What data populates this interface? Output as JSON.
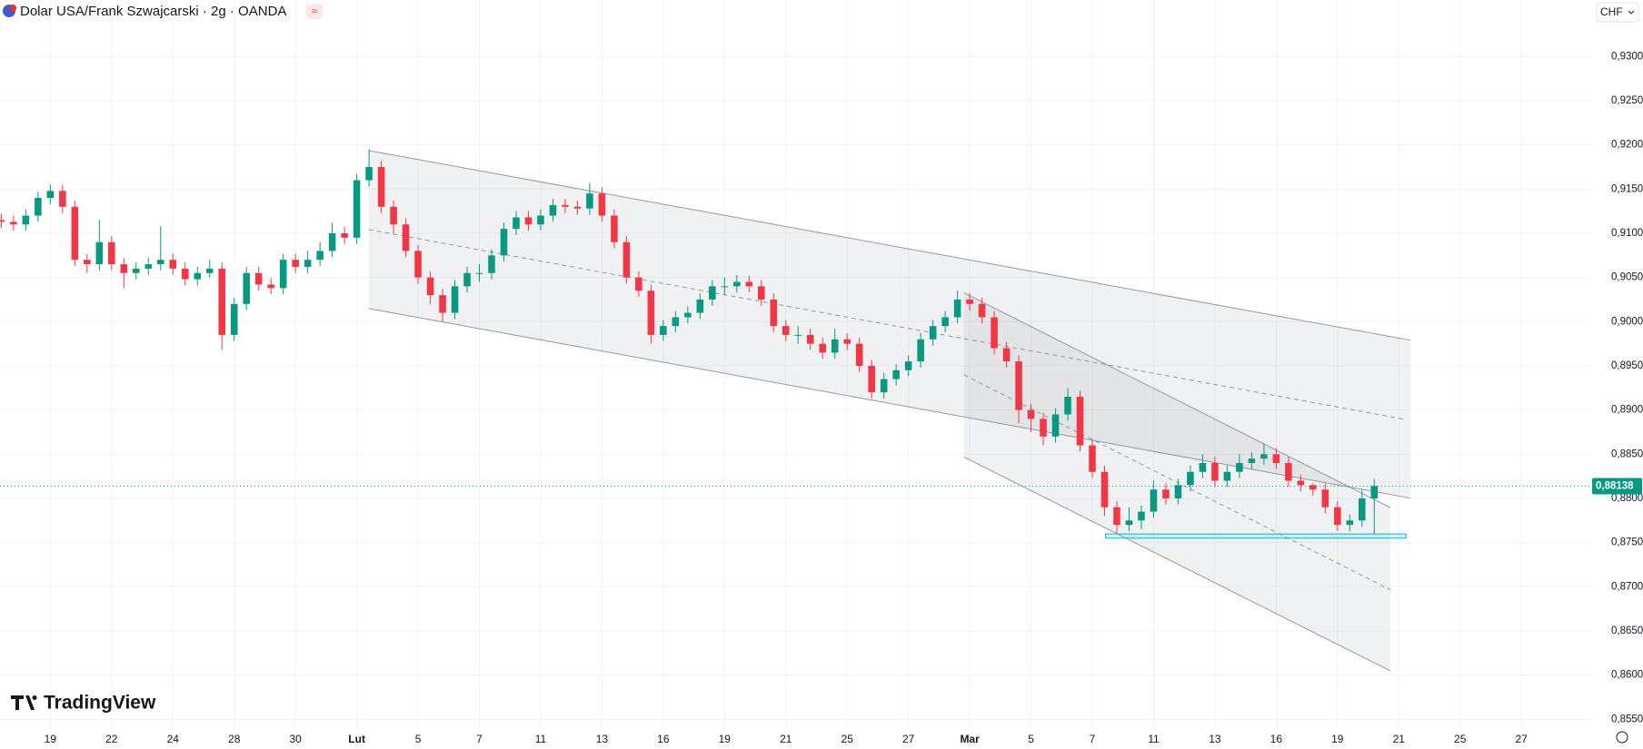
{
  "chart_data": {
    "type": "candlestick",
    "title": "Dolar USA/Frank Szwajcarski · 2g · OANDA",
    "currency": "CHF",
    "watermark": "TradingView",
    "up_color": "#089981",
    "down_color": "#f23645",
    "grid": true,
    "categories": [
      null,
      null,
      null,
      null,
      "19",
      null,
      null,
      null,
      null,
      "22",
      null,
      null,
      null,
      null,
      "24",
      null,
      null,
      null,
      null,
      "28",
      null,
      null,
      null,
      null,
      "30",
      null,
      null,
      null,
      null,
      "Lut",
      null,
      null,
      null,
      null,
      "5",
      null,
      null,
      null,
      null,
      "7",
      null,
      null,
      null,
      null,
      "11",
      null,
      null,
      null,
      null,
      "13",
      null,
      null,
      null,
      null,
      "16",
      null,
      null,
      null,
      null,
      "19",
      null,
      null,
      null,
      null,
      "21",
      null,
      null,
      null,
      null,
      "25",
      null,
      null,
      null,
      null,
      "27",
      null,
      null,
      null,
      null,
      "Mar",
      null,
      null,
      null,
      null,
      "5",
      null,
      null,
      null,
      null,
      "7",
      null,
      null,
      null,
      null,
      "11",
      null,
      null,
      null,
      null,
      "13",
      null,
      null,
      null,
      null,
      "16",
      null,
      null,
      null,
      null,
      "19",
      null,
      null,
      null,
      null,
      "21",
      null,
      null,
      null,
      null,
      "25",
      null,
      null,
      null,
      null,
      "27"
    ],
    "open": [
      0.9115,
      0.9113,
      0.911,
      0.912,
      0.914,
      0.9148,
      0.913,
      0.907,
      0.9065,
      0.909,
      0.9065,
      0.9055,
      0.906,
      0.9065,
      0.907,
      0.906,
      0.9048,
      0.9055,
      0.906,
      0.8985,
      0.902,
      0.9055,
      0.9042,
      0.9038,
      0.907,
      0.9062,
      0.907,
      0.908,
      0.91,
      0.9095,
      0.916,
      0.9175,
      0.913,
      0.911,
      0.908,
      0.905,
      0.903,
      0.901,
      0.904,
      0.9055,
      0.9055,
      0.9075,
      0.9105,
      0.9118,
      0.911,
      0.912,
      0.9132,
      0.913,
      0.9128,
      0.9145,
      0.912,
      0.909,
      0.905,
      0.9035,
      0.8985,
      0.8995,
      0.9005,
      0.901,
      0.9025,
      0.904,
      0.904,
      0.9045,
      0.904,
      0.9025,
      0.8995,
      0.8985,
      0.8985,
      0.8975,
      0.8965,
      0.898,
      0.8975,
      0.895,
      0.892,
      0.8935,
      0.8945,
      0.8955,
      0.898,
      0.8995,
      0.9005,
      0.9025,
      0.902,
      0.9005,
      0.897,
      0.8955,
      0.89,
      0.889,
      0.887,
      0.8895,
      0.8915,
      0.886,
      0.883,
      0.879,
      0.877,
      0.8775,
      0.8785,
      0.881,
      0.88,
      0.8815,
      0.883,
      0.884,
      0.882,
      0.883,
      0.884,
      0.8845,
      0.885,
      0.884,
      0.882,
      0.8815,
      0.881,
      0.879,
      0.877,
      0.8775,
      0.88,
      null,
      null,
      null,
      null,
      null,
      null,
      null,
      null,
      null,
      null,
      null,
      null
    ],
    "high": [
      0.9122,
      0.912,
      0.9127,
      0.9147,
      0.9155,
      0.9155,
      0.9137,
      0.9077,
      0.9115,
      0.9097,
      0.9072,
      0.9067,
      0.9072,
      0.9108,
      0.9077,
      0.9067,
      0.9062,
      0.907,
      0.9067,
      0.9027,
      0.9062,
      0.9062,
      0.9049,
      0.9077,
      0.9077,
      0.908,
      0.909,
      0.9112,
      0.9107,
      0.9167,
      0.9195,
      0.9182,
      0.9137,
      0.9117,
      0.9087,
      0.9057,
      0.9037,
      0.9047,
      0.9062,
      0.9065,
      0.9082,
      0.9112,
      0.9125,
      0.9125,
      0.9127,
      0.9139,
      0.9139,
      0.9137,
      0.9157,
      0.9152,
      0.9127,
      0.9097,
      0.9057,
      0.9042,
      0.9002,
      0.9012,
      0.9017,
      0.9032,
      0.9047,
      0.905,
      0.9053,
      0.9052,
      0.9047,
      0.9032,
      0.9002,
      0.8995,
      0.8992,
      0.8982,
      0.8992,
      0.8987,
      0.8982,
      0.8957,
      0.8942,
      0.8952,
      0.8962,
      0.8987,
      0.9002,
      0.9012,
      0.9035,
      0.9032,
      0.9027,
      0.9012,
      0.8977,
      0.8962,
      0.8907,
      0.8897,
      0.8902,
      0.8925,
      0.8922,
      0.8867,
      0.8837,
      0.8797,
      0.879,
      0.8792,
      0.882,
      0.8817,
      0.8822,
      0.8837,
      0.885,
      0.8847,
      0.8837,
      0.885,
      0.8852,
      0.8862,
      0.8857,
      0.8847,
      0.8827,
      0.8817,
      0.8817,
      0.8797,
      0.8782,
      0.881,
      0.8822,
      null,
      null,
      null,
      null,
      null,
      null,
      null,
      null,
      null,
      null,
      null,
      null
    ],
    "low": [
      0.9106,
      0.9103,
      0.9103,
      0.9113,
      0.9133,
      0.9123,
      0.9063,
      0.9055,
      0.9058,
      0.9058,
      0.9038,
      0.9048,
      0.9053,
      0.9058,
      0.9053,
      0.9041,
      0.9041,
      0.905,
      0.8968,
      0.8978,
      0.9013,
      0.9035,
      0.9031,
      0.9031,
      0.9055,
      0.9055,
      0.9063,
      0.9073,
      0.9088,
      0.9088,
      0.9153,
      0.9123,
      0.91,
      0.9073,
      0.9043,
      0.902,
      0.9,
      0.9003,
      0.9033,
      0.9045,
      0.9048,
      0.9068,
      0.9098,
      0.9103,
      0.9103,
      0.9113,
      0.9123,
      0.9121,
      0.9121,
      0.9113,
      0.9083,
      0.9043,
      0.9028,
      0.8975,
      0.8978,
      0.8988,
      0.8998,
      0.9003,
      0.9018,
      0.903,
      0.9033,
      0.9033,
      0.9018,
      0.8988,
      0.8978,
      0.8975,
      0.8968,
      0.8958,
      0.8958,
      0.8968,
      0.8943,
      0.8913,
      0.8913,
      0.8928,
      0.8938,
      0.8948,
      0.8973,
      0.8988,
      0.8998,
      0.9013,
      0.8998,
      0.8963,
      0.8948,
      0.8885,
      0.8875,
      0.886,
      0.8863,
      0.8888,
      0.8853,
      0.8823,
      0.878,
      0.876,
      0.8763,
      0.8765,
      0.8778,
      0.8793,
      0.8793,
      0.8808,
      0.8823,
      0.8813,
      0.8813,
      0.8823,
      0.8833,
      0.8838,
      0.8833,
      0.8813,
      0.8808,
      0.8803,
      0.8783,
      0.8763,
      0.8763,
      0.8768,
      0.876,
      null,
      null,
      null,
      null,
      null,
      null,
      null,
      null,
      null,
      null,
      null,
      null
    ],
    "close": [
      0.9113,
      0.911,
      0.912,
      0.914,
      0.9148,
      0.913,
      0.907,
      0.9065,
      0.909,
      0.9065,
      0.9055,
      0.906,
      0.9065,
      0.907,
      0.906,
      0.9048,
      0.9055,
      0.906,
      0.8985,
      0.902,
      0.9055,
      0.9042,
      0.9038,
      0.907,
      0.9062,
      0.907,
      0.908,
      0.91,
      0.9095,
      0.916,
      0.9175,
      0.913,
      0.911,
      0.908,
      0.905,
      0.903,
      0.901,
      0.904,
      0.9055,
      0.9055,
      0.9075,
      0.9105,
      0.9118,
      0.911,
      0.912,
      0.9132,
      0.913,
      0.9128,
      0.9145,
      0.912,
      0.909,
      0.905,
      0.9035,
      0.8985,
      0.8995,
      0.9005,
      0.901,
      0.9025,
      0.904,
      0.904,
      0.9045,
      0.904,
      0.9025,
      0.8995,
      0.8985,
      0.8985,
      0.8975,
      0.8965,
      0.898,
      0.8975,
      0.895,
      0.892,
      0.8935,
      0.8945,
      0.8955,
      0.898,
      0.8995,
      0.9005,
      0.9025,
      0.902,
      0.9005,
      0.897,
      0.8955,
      0.89,
      0.889,
      0.887,
      0.8895,
      0.8915,
      0.886,
      0.883,
      0.879,
      0.877,
      0.8775,
      0.8785,
      0.881,
      0.88,
      0.8815,
      0.883,
      0.884,
      0.882,
      0.883,
      0.884,
      0.8845,
      0.885,
      0.884,
      0.882,
      0.8815,
      0.881,
      0.879,
      0.877,
      0.8775,
      0.88,
      0.8814,
      null,
      null,
      null,
      null,
      null,
      null,
      null,
      null,
      null,
      null,
      null,
      null
    ],
    "ylim": [
      0.8539,
      0.9364
    ],
    "yticks": [
      {
        "value": 0.93,
        "label": "0,93000"
      },
      {
        "value": 0.925,
        "label": "0,92500"
      },
      {
        "value": 0.92,
        "label": "0,92000"
      },
      {
        "value": 0.915,
        "label": "0,91500"
      },
      {
        "value": 0.91,
        "label": "0,91000"
      },
      {
        "value": 0.905,
        "label": "0,90500"
      },
      {
        "value": 0.9,
        "label": "0,90000"
      },
      {
        "value": 0.895,
        "label": "0,89500"
      },
      {
        "value": 0.89,
        "label": "0,89000"
      },
      {
        "value": 0.885,
        "label": "0,88500"
      },
      {
        "value": 0.88,
        "label": "0,88000"
      },
      {
        "value": 0.875,
        "label": "0,87500"
      },
      {
        "value": 0.87,
        "label": "0,87000"
      },
      {
        "value": 0.865,
        "label": "0,86500"
      },
      {
        "value": 0.86,
        "label": "0,86000"
      },
      {
        "value": 0.855,
        "label": "0,85500"
      }
    ],
    "last_price": {
      "value": 0.88138,
      "label": "0,88138"
    }
  }
}
